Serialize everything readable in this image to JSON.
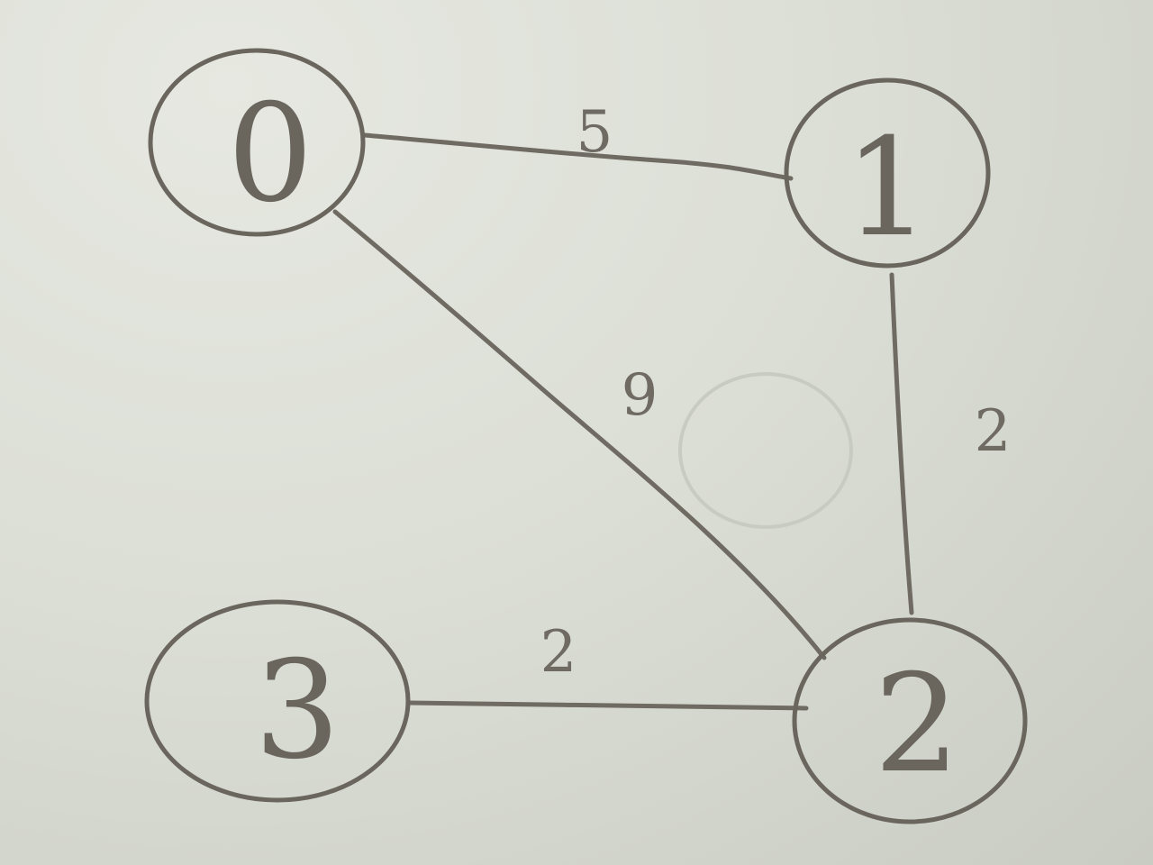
{
  "graph": {
    "nodes": [
      {
        "id": "0",
        "label": "0"
      },
      {
        "id": "1",
        "label": "1"
      },
      {
        "id": "2",
        "label": "2"
      },
      {
        "id": "3",
        "label": "3"
      }
    ],
    "edges": [
      {
        "from": "0",
        "to": "1",
        "weight": "5"
      },
      {
        "from": "0",
        "to": "2",
        "weight": "9"
      },
      {
        "from": "1",
        "to": "2",
        "weight": "2"
      },
      {
        "from": "3",
        "to": "2",
        "weight": "2"
      }
    ]
  },
  "colors": {
    "paper": "#d9dcd3",
    "ink": "#6a655d"
  }
}
